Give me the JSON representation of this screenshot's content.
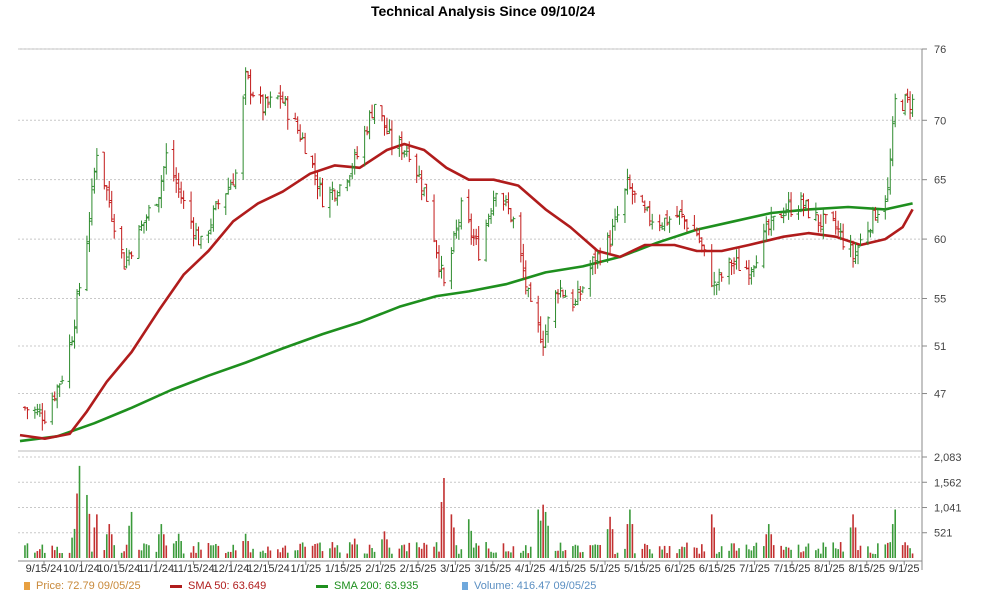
{
  "chart_data": {
    "type": "ohlc",
    "title": "Technical Analysis Since 09/10/24",
    "price_axis": {
      "ticks": [
        47,
        51,
        55,
        60,
        65,
        70,
        76
      ],
      "ylim": [
        42.5,
        76
      ]
    },
    "volume_axis": {
      "tick_labels": [
        "521",
        "1,041",
        "1,562",
        "2,083"
      ],
      "tick_values": [
        521,
        1041,
        1562,
        2083
      ],
      "ylim": [
        0,
        2083
      ]
    },
    "x_tick_labels": [
      "9/15/24",
      "10/1/24",
      "10/15/24",
      "11/1/24",
      "11/15/24",
      "12/1/24",
      "12/15/24",
      "1/1/25",
      "1/15/25",
      "2/1/25",
      "2/15/25",
      "3/1/25",
      "3/15/25",
      "4/1/25",
      "4/15/25",
      "5/1/25",
      "5/15/25",
      "6/1/25",
      "6/15/25",
      "7/1/25",
      "7/15/25",
      "8/1/25",
      "8/15/25",
      "9/1/25"
    ],
    "price_series": {
      "name": "Price",
      "up_color": "#2e8b2e",
      "down_color": "#c21a1a",
      "ohlc_approx": [
        [
          "2024-09-12",
          45.8
        ],
        [
          "2024-09-20",
          45.2
        ],
        [
          "2024-09-27",
          48.5
        ],
        [
          "2024-10-01",
          52.0
        ],
        [
          "2024-10-07",
          60.0
        ],
        [
          "2024-10-11",
          67.5
        ],
        [
          "2024-10-15",
          64.0
        ],
        [
          "2024-10-22",
          58.0
        ],
        [
          "2024-10-29",
          61.0
        ],
        [
          "2024-11-05",
          64.0
        ],
        [
          "2024-11-08",
          67.0
        ],
        [
          "2024-11-15",
          63.0
        ],
        [
          "2024-11-22",
          59.5
        ],
        [
          "2024-11-29",
          63.0
        ],
        [
          "2024-12-06",
          65.5
        ],
        [
          "2024-12-10",
          73.5
        ],
        [
          "2024-12-17",
          71.0
        ],
        [
          "2024-12-24",
          72.0
        ],
        [
          "2025-01-03",
          68.0
        ],
        [
          "2025-01-10",
          63.5
        ],
        [
          "2025-01-17",
          64.5
        ],
        [
          "2025-01-24",
          67.0
        ],
        [
          "2025-01-31",
          71.5
        ],
        [
          "2025-02-07",
          68.0
        ],
        [
          "2025-02-14",
          67.5
        ],
        [
          "2025-02-21",
          63.5
        ],
        [
          "2025-02-28",
          56.0
        ],
        [
          "2025-03-07",
          62.5
        ],
        [
          "2025-03-14",
          59.0
        ],
        [
          "2025-03-21",
          64.5
        ],
        [
          "2025-03-28",
          61.5
        ],
        [
          "2025-04-04",
          54.0
        ],
        [
          "2025-04-09",
          51.5
        ],
        [
          "2025-04-15",
          56.0
        ],
        [
          "2025-04-22",
          54.5
        ],
        [
          "2025-04-29",
          58.0
        ],
        [
          "2025-05-06",
          60.0
        ],
        [
          "2025-05-13",
          64.5
        ],
        [
          "2025-05-20",
          62.0
        ],
        [
          "2025-05-27",
          61.5
        ],
        [
          "2025-06-03",
          62.0
        ],
        [
          "2025-06-10",
          60.5
        ],
        [
          "2025-06-17",
          56.0
        ],
        [
          "2025-06-24",
          58.0
        ],
        [
          "2025-07-01",
          57.5
        ],
        [
          "2025-07-08",
          60.5
        ],
        [
          "2025-07-15",
          62.5
        ],
        [
          "2025-07-22",
          63.0
        ],
        [
          "2025-07-29",
          61.5
        ],
        [
          "2025-08-05",
          61.0
        ],
        [
          "2025-08-12",
          58.5
        ],
        [
          "2025-08-19",
          61.5
        ],
        [
          "2025-08-26",
          64.0
        ],
        [
          "2025-08-29",
          71.5
        ],
        [
          "2025-09-05",
          71.5
        ]
      ]
    },
    "sma50_series": {
      "name": "SMA 50",
      "color": "#b01c1c",
      "points": [
        [
          "2024-09-10",
          43.5
        ],
        [
          "2024-09-20",
          43.2
        ],
        [
          "2024-09-30",
          43.6
        ],
        [
          "2024-10-07",
          45.5
        ],
        [
          "2024-10-15",
          48.0
        ],
        [
          "2024-10-25",
          50.5
        ],
        [
          "2024-11-05",
          54.0
        ],
        [
          "2024-11-15",
          57.0
        ],
        [
          "2024-11-25",
          59.0
        ],
        [
          "2024-12-05",
          61.5
        ],
        [
          "2024-12-15",
          63.0
        ],
        [
          "2024-12-25",
          64.0
        ],
        [
          "2025-01-05",
          65.5
        ],
        [
          "2025-01-15",
          66.2
        ],
        [
          "2025-01-25",
          66.0
        ],
        [
          "2025-02-05",
          67.5
        ],
        [
          "2025-02-12",
          68.0
        ],
        [
          "2025-02-20",
          67.5
        ],
        [
          "2025-03-01",
          66.0
        ],
        [
          "2025-03-10",
          65.0
        ],
        [
          "2025-03-20",
          65.0
        ],
        [
          "2025-03-30",
          64.5
        ],
        [
          "2025-04-10",
          62.5
        ],
        [
          "2025-04-20",
          61.0
        ],
        [
          "2025-05-01",
          59.0
        ],
        [
          "2025-05-10",
          58.5
        ],
        [
          "2025-05-20",
          59.5
        ],
        [
          "2025-06-01",
          59.5
        ],
        [
          "2025-06-10",
          59.0
        ],
        [
          "2025-06-20",
          59.0
        ],
        [
          "2025-07-01",
          59.5
        ],
        [
          "2025-07-15",
          60.2
        ],
        [
          "2025-07-25",
          60.5
        ],
        [
          "2025-08-05",
          60.2
        ],
        [
          "2025-08-15",
          59.5
        ],
        [
          "2025-08-25",
          60.0
        ],
        [
          "2025-09-01",
          61.0
        ],
        [
          "2025-09-05",
          62.5
        ]
      ]
    },
    "sma200_series": {
      "name": "SMA 200",
      "color": "#1e8f1e",
      "points": [
        [
          "2024-09-10",
          43.0
        ],
        [
          "2024-09-25",
          43.4
        ],
        [
          "2024-10-10",
          44.5
        ],
        [
          "2024-10-25",
          45.8
        ],
        [
          "2024-11-10",
          47.3
        ],
        [
          "2024-11-25",
          48.5
        ],
        [
          "2024-12-10",
          49.6
        ],
        [
          "2024-12-25",
          50.8
        ],
        [
          "2025-01-10",
          52.0
        ],
        [
          "2025-01-25",
          53.0
        ],
        [
          "2025-02-10",
          54.3
        ],
        [
          "2025-02-25",
          55.2
        ],
        [
          "2025-03-10",
          55.6
        ],
        [
          "2025-03-25",
          56.2
        ],
        [
          "2025-04-10",
          57.2
        ],
        [
          "2025-04-25",
          57.7
        ],
        [
          "2025-05-10",
          58.5
        ],
        [
          "2025-05-25",
          59.7
        ],
        [
          "2025-06-10",
          60.8
        ],
        [
          "2025-06-25",
          61.5
        ],
        [
          "2025-07-10",
          62.2
        ],
        [
          "2025-07-25",
          62.5
        ],
        [
          "2025-08-10",
          62.7
        ],
        [
          "2025-08-25",
          62.5
        ],
        [
          "2025-09-05",
          63.0
        ]
      ]
    },
    "volume_series": {
      "name": "Volume",
      "approx_values": [
        [
          "2024-10-02",
          600
        ],
        [
          "2024-10-04",
          1900
        ],
        [
          "2024-10-07",
          1300
        ],
        [
          "2024-10-11",
          900
        ],
        [
          "2024-10-16",
          700
        ],
        [
          "2024-10-25",
          950
        ],
        [
          "2024-11-06",
          700
        ],
        [
          "2024-11-13",
          500
        ],
        [
          "2024-12-10",
          500
        ],
        [
          "2025-01-23",
          400
        ],
        [
          "2025-02-04",
          550
        ],
        [
          "2025-02-28",
          1650
        ],
        [
          "2025-03-03",
          900
        ],
        [
          "2025-03-10",
          800
        ],
        [
          "2025-04-07",
          1000
        ],
        [
          "2025-04-09",
          1100
        ],
        [
          "2025-04-10",
          950
        ],
        [
          "2025-05-06",
          850
        ],
        [
          "2025-05-14",
          1000
        ],
        [
          "2025-06-16",
          900
        ],
        [
          "2025-07-09",
          700
        ],
        [
          "2025-08-12",
          900
        ],
        [
          "2025-08-29",
          1000
        ]
      ]
    }
  },
  "legend": {
    "price": "Price: 72.79  09/05/25",
    "sma50": "SMA 50: 63.649",
    "sma200": "SMA 200: 63.935",
    "volume": "Volume: 416.47  09/05/25"
  },
  "colors": {
    "price_marker": "#e8a040",
    "sma50": "#b01c1c",
    "sma200": "#1e8f1e",
    "volume_marker": "#6fa8dc",
    "grid": "#c8c8c8"
  }
}
